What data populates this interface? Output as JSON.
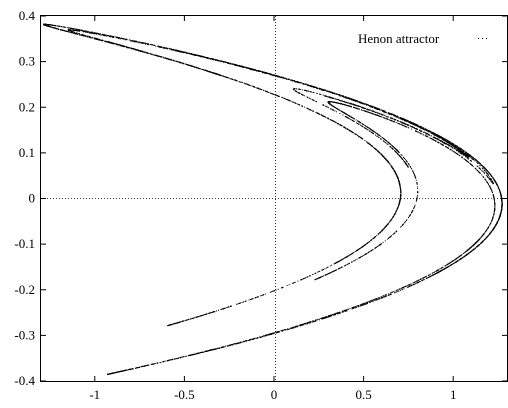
{
  "chart_data": {
    "type": "scatter",
    "title": "",
    "xlabel": "",
    "ylabel": "",
    "xlim": [
      -1.3,
      1.3
    ],
    "ylim": [
      -0.4,
      0.4
    ],
    "x_ticks": [
      -1,
      -0.5,
      0,
      0.5,
      1
    ],
    "x_tick_labels": [
      "-1",
      "-0.5",
      "0",
      "0.5",
      "1"
    ],
    "y_ticks": [
      -0.4,
      -0.3,
      -0.2,
      -0.1,
      0,
      0.1,
      0.2,
      0.3,
      0.4
    ],
    "y_tick_labels": [
      "-0.4",
      "-0.3",
      "-0.2",
      "-0.1",
      "0",
      "0.1",
      "0.2",
      "0.3",
      "0.4"
    ],
    "zero_axes": true,
    "legend": {
      "position": "top-right"
    },
    "series": [
      {
        "name": "Henon attractor",
        "generator": "henon",
        "a": 1.4,
        "b": 0.3,
        "x0": 0.1,
        "y0": 0.1,
        "points": 8000,
        "color": "#000000"
      }
    ]
  }
}
